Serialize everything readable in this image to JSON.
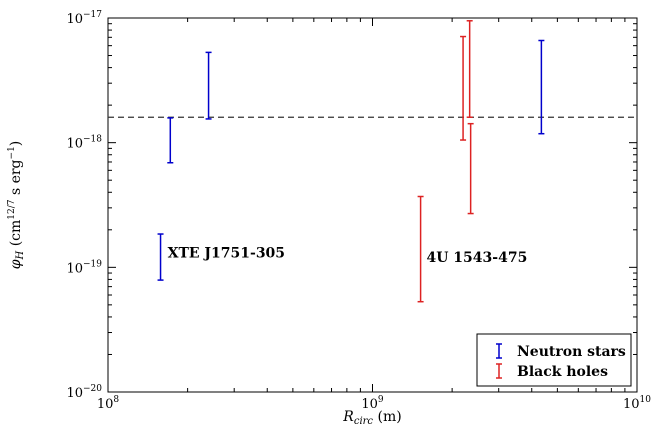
{
  "chart_data": {
    "type": "scatter",
    "x_scale": "log",
    "y_scale": "log",
    "xlim": [
      100000000.0,
      10000000000.0
    ],
    "ylim": [
      1e-20,
      1e-17
    ],
    "xlabel": "R_circ (m)",
    "xlabel_parts": {
      "symbol": "R",
      "subscript": "circ",
      "unit": " (m)"
    },
    "ylabel": "φ_H (cm^12/7 s erg^-1)",
    "ylabel_parts": {
      "symbol": "φ",
      "subscript": "H",
      "unit_open": " (cm",
      "exp1": "12/7",
      "unit_mid": " s erg",
      "exp2": "−1",
      "unit_close": ")"
    },
    "x_ticks": [
      {
        "value": 100000000.0,
        "base": "10",
        "exp": "8"
      },
      {
        "value": 1000000000.0,
        "base": "10",
        "exp": "9"
      },
      {
        "value": 10000000000.0,
        "base": "10",
        "exp": "10"
      }
    ],
    "y_ticks": [
      {
        "value": 1e-20,
        "base": "10",
        "exp": "−20"
      },
      {
        "value": 1e-19,
        "base": "10",
        "exp": "−19"
      },
      {
        "value": 1e-18,
        "base": "10",
        "exp": "−18"
      },
      {
        "value": 1e-17,
        "base": "10",
        "exp": "−17"
      }
    ],
    "reference_line": {
      "y": 1.6e-18,
      "style": "dashed"
    },
    "series": [
      {
        "name": "Neutron stars",
        "color": "#0000cc",
        "ranges": [
          {
            "x": 158000000.0,
            "y_low": 7.9e-20,
            "y_high": 1.85e-19
          },
          {
            "x": 172000000.0,
            "y_low": 6.9e-19,
            "y_high": 1.58e-18
          },
          {
            "x": 240000000.0,
            "y_low": 1.55e-18,
            "y_high": 5.3e-18
          },
          {
            "x": 4350000000.0,
            "y_low": 1.18e-18,
            "y_high": 6.6e-18
          }
        ]
      },
      {
        "name": "Black holes",
        "color": "#dd2222",
        "ranges": [
          {
            "x": 1520000000.0,
            "y_low": 5.3e-20,
            "y_high": 3.7e-19
          },
          {
            "x": 2200000000.0,
            "y_low": 1.05e-18,
            "y_high": 7.1e-18
          },
          {
            "x": 2330000000.0,
            "y_low": 1.6e-18,
            "y_high": 9.5e-18
          },
          {
            "x": 2350000000.0,
            "y_low": 2.7e-19,
            "y_high": 1.42e-18
          }
        ]
      }
    ],
    "annotations": [
      {
        "text": "XTE J1751-305",
        "x": 168000000.0,
        "y": 1.2e-19
      },
      {
        "text": "4U 1543-475",
        "x": 1600000000.0,
        "y": 1.1e-19
      }
    ],
    "legend": {
      "placement": "bottom-right"
    },
    "grid": false
  }
}
